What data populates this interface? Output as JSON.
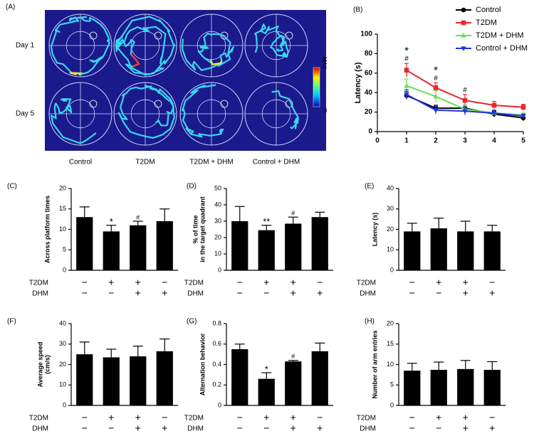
{
  "heatmap_panel": {
    "label": "(A)",
    "rows": [
      "Day 1",
      "Day 5"
    ],
    "columns": [
      "Control",
      "T2DM",
      "T2DM + DHM",
      "Control + DHM"
    ],
    "colorbar_max": "MAX",
    "colorbar_min": "0"
  },
  "chart_data": [
    {
      "type": "line",
      "label": "(B)",
      "ylabel": "Latency (s)",
      "x": [
        1,
        2,
        3,
        4,
        5
      ],
      "xlim": [
        0,
        5
      ],
      "xticks": [
        0,
        1,
        2,
        3,
        4,
        5
      ],
      "ylim": [
        0,
        100
      ],
      "yticks": [
        0,
        20,
        40,
        60,
        80,
        100
      ],
      "series": [
        {
          "name": "Control",
          "color": "#000000",
          "marker": "circle",
          "values": [
            37,
            24,
            24,
            18,
            14
          ],
          "errors": [
            4,
            3,
            3,
            3,
            3
          ]
        },
        {
          "name": "T2DM",
          "color": "#e8282b",
          "marker": "square",
          "values": [
            63,
            45,
            32,
            27,
            25
          ],
          "errors": [
            7,
            5,
            6,
            4,
            3
          ]
        },
        {
          "name": "T2DM + DHM",
          "color": "#66e05a",
          "marker": "triangle",
          "values": [
            47,
            36,
            23,
            19,
            17
          ],
          "errors": [
            7,
            6,
            4,
            3,
            2
          ]
        },
        {
          "name": "Control + DHM",
          "color": "#2233dd",
          "marker": "triangle-down",
          "values": [
            38,
            22,
            21,
            19,
            16
          ],
          "errors": [
            5,
            4,
            4,
            3,
            2
          ]
        }
      ],
      "significance": [
        [
          "*",
          "#"
        ],
        [
          "*",
          "#"
        ],
        [
          "#"
        ],
        null,
        null
      ]
    },
    {
      "type": "bar",
      "label": "(C)",
      "ylabel": "Across platform times",
      "color": "#000000",
      "values": [
        13,
        9.5,
        11,
        12
      ],
      "errors": [
        2.5,
        1.5,
        1,
        3
      ],
      "significance": [
        null,
        "*",
        "#",
        null
      ],
      "ylim": [
        0,
        20
      ],
      "yticks": [
        0,
        5,
        10,
        15,
        20
      ],
      "conditions": [
        {
          "name": "T2DM",
          "signs": [
            "−",
            "+",
            "+",
            "−"
          ]
        },
        {
          "name": "DHM",
          "signs": [
            "−",
            "−",
            "+",
            "+"
          ]
        }
      ]
    },
    {
      "type": "bar",
      "label": "(D)",
      "ylabel": [
        "% of time",
        "in the target quadrant"
      ],
      "color": "#000000",
      "values": [
        30,
        24.5,
        28.5,
        32.5
      ],
      "errors": [
        9,
        3,
        4,
        3
      ],
      "significance": [
        null,
        "**",
        "#",
        null
      ],
      "ylim": [
        0,
        50
      ],
      "yticks": [
        0,
        10,
        20,
        30,
        40,
        50
      ],
      "conditions": [
        {
          "name": "T2DM",
          "signs": [
            "−",
            "+",
            "+",
            "−"
          ]
        },
        {
          "name": "DHM",
          "signs": [
            "−",
            "−",
            "+",
            "+"
          ]
        }
      ]
    },
    {
      "type": "bar",
      "label": "(E)",
      "ylabel": "Latency (s)",
      "color": "#000000",
      "values": [
        19,
        20.5,
        19,
        19
      ],
      "errors": [
        4,
        5,
        5,
        3
      ],
      "significance": [
        null,
        null,
        null,
        null
      ],
      "ylim": [
        0,
        40
      ],
      "yticks": [
        0,
        10,
        20,
        30,
        40
      ],
      "conditions": [
        {
          "name": "T2DM",
          "signs": [
            "−",
            "+",
            "+",
            "−"
          ]
        },
        {
          "name": "DHM",
          "signs": [
            "−",
            "−",
            "+",
            "+"
          ]
        }
      ]
    },
    {
      "type": "bar",
      "label": "(F)",
      "ylabel": [
        "Average speed",
        "(cm/s)"
      ],
      "color": "#000000",
      "values": [
        25,
        23.5,
        24,
        26.5
      ],
      "errors": [
        6,
        4,
        5,
        6
      ],
      "significance": [
        null,
        null,
        null,
        null
      ],
      "ylim": [
        0,
        40
      ],
      "yticks": [
        0,
        10,
        20,
        30,
        40
      ],
      "conditions": [
        {
          "name": "T2DM",
          "signs": [
            "−",
            "+",
            "+",
            "−"
          ]
        },
        {
          "name": "DHM",
          "signs": [
            "−",
            "−",
            "+",
            "+"
          ]
        }
      ]
    },
    {
      "type": "bar",
      "label": "(G)",
      "ylabel": "Alternation behavior",
      "color": "#000000",
      "values": [
        0.55,
        0.26,
        0.43,
        0.53
      ],
      "errors": [
        0.05,
        0.06,
        0.01,
        0.08
      ],
      "significance": [
        null,
        "*",
        "#",
        null
      ],
      "ylim": [
        0,
        0.8
      ],
      "yticks": [
        0,
        0.2,
        0.4,
        0.6,
        0.8
      ],
      "conditions": [
        {
          "name": "T2DM",
          "signs": [
            "−",
            "+",
            "+",
            "−"
          ]
        },
        {
          "name": "DHM",
          "signs": [
            "−",
            "−",
            "+",
            "+"
          ]
        }
      ]
    },
    {
      "type": "bar",
      "label": "(H)",
      "ylabel": "Number of arm entries",
      "color": "#000000",
      "values": [
        8.5,
        8.7,
        8.9,
        8.7
      ],
      "errors": [
        1.8,
        1.9,
        2.1,
        2
      ],
      "significance": [
        null,
        null,
        null,
        null
      ],
      "ylim": [
        0,
        20
      ],
      "yticks": [
        0,
        5,
        10,
        15,
        20
      ],
      "conditions": [
        {
          "name": "T2DM",
          "signs": [
            "−",
            "+",
            "+",
            "−"
          ]
        },
        {
          "name": "DHM",
          "signs": [
            "−",
            "−",
            "+",
            "+"
          ]
        }
      ]
    }
  ]
}
